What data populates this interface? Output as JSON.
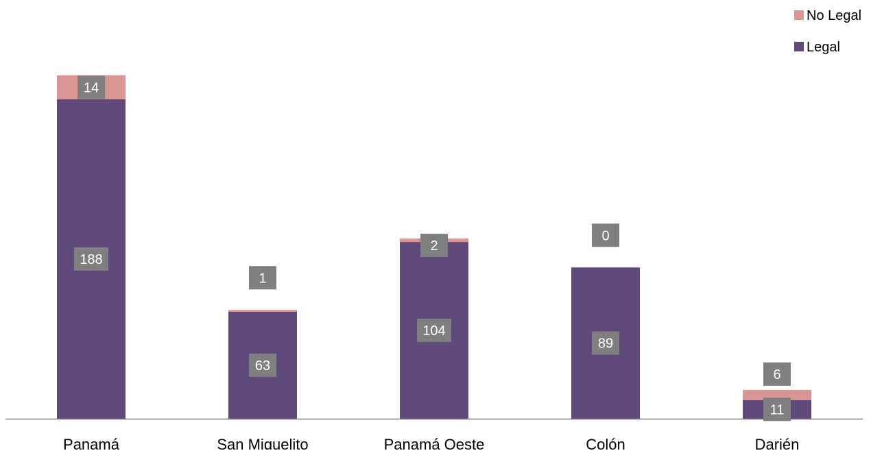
{
  "chart_data": {
    "type": "bar",
    "stacked": true,
    "categories": [
      "Panamá",
      "San Miguelito",
      "Panamá Oeste",
      "Colón",
      "Darién"
    ],
    "series": [
      {
        "name": "Legal",
        "values": [
          188,
          63,
          104,
          89,
          11
        ],
        "color": "#5F497A"
      },
      {
        "name": "No Legal",
        "values": [
          14,
          1,
          2,
          0,
          6
        ],
        "color": "#D99694"
      }
    ],
    "title": "",
    "xlabel": "",
    "ylabel": "",
    "ylim": [
      0,
      202
    ],
    "grid": false,
    "legend_position": "top-right",
    "data_label_background": "#7F7F7F",
    "axis_color": "#808080"
  }
}
